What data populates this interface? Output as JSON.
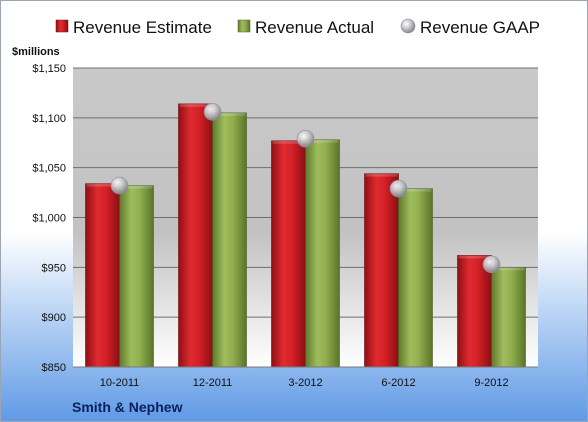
{
  "chart_data": {
    "type": "bar",
    "unit_label": "$millions",
    "company": "Smith & Nephew",
    "categories": [
      "10-2011",
      "12-2011",
      "3-2012",
      "6-2012",
      "9-2012"
    ],
    "series": [
      {
        "name": "Revenue Estimate",
        "kind": "bar",
        "color": "#cc2229",
        "values": [
          1034,
          1114,
          1077,
          1044,
          962
        ]
      },
      {
        "name": "Revenue Actual",
        "kind": "bar",
        "color": "#8aa84a",
        "values": [
          1032,
          1105,
          1078,
          1029,
          950
        ]
      },
      {
        "name": "Revenue GAAP",
        "kind": "marker",
        "color": "#b8b8c0",
        "values": [
          1032,
          1106,
          1079,
          1029,
          953
        ]
      }
    ],
    "y_ticks": [
      "$850",
      "$900",
      "$950",
      "$1,000",
      "$1,050",
      "$1,100",
      "$1,150"
    ],
    "y_tick_values": [
      850,
      900,
      950,
      1000,
      1050,
      1100,
      1150
    ],
    "ylim": [
      850,
      1150
    ],
    "grid": true,
    "legend_position": "top"
  }
}
